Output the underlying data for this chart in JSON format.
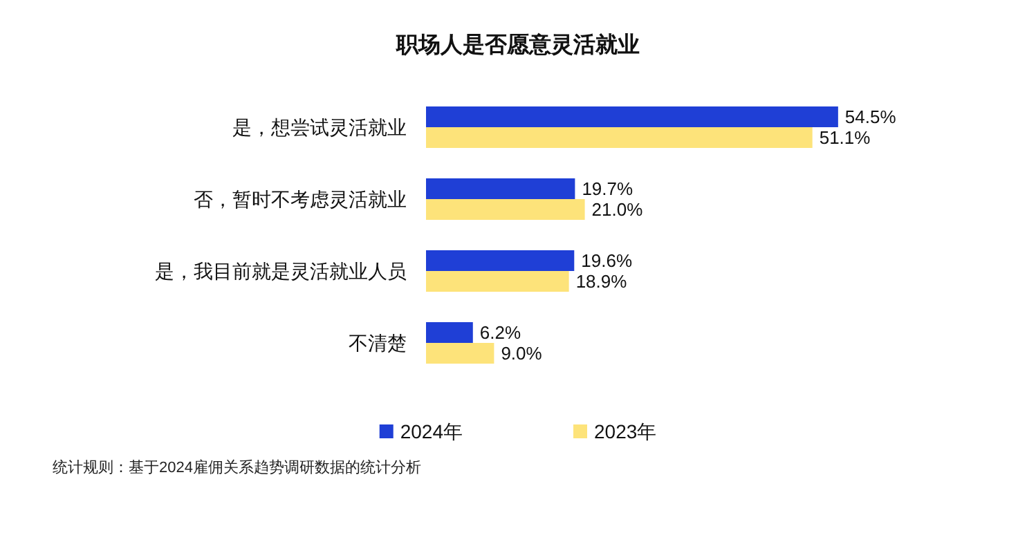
{
  "chart_data": {
    "type": "bar",
    "orientation": "horizontal",
    "title": "职场人是否愿意灵活就业",
    "categories": [
      "是，想尝试灵活就业",
      "否，暂时不考虑灵活就业",
      "是，我目前就是灵活就业人员",
      "不清楚"
    ],
    "series": [
      {
        "name": "2024年",
        "color": "#1f3fd6",
        "values": [
          54.5,
          19.7,
          19.6,
          6.2
        ],
        "value_labels": [
          "54.5%",
          "19.7%",
          "19.6%",
          "6.2%"
        ]
      },
      {
        "name": "2023年",
        "color": "#fde37a",
        "values": [
          51.1,
          21.0,
          18.9,
          9.0
        ],
        "value_labels": [
          "51.1%",
          "21.0%",
          "18.9%",
          "9.0%"
        ]
      }
    ],
    "legend": "bottom",
    "annotations": [
      "统计规则：基于2024雇佣关系趋势调研数据的统计分析"
    ]
  }
}
